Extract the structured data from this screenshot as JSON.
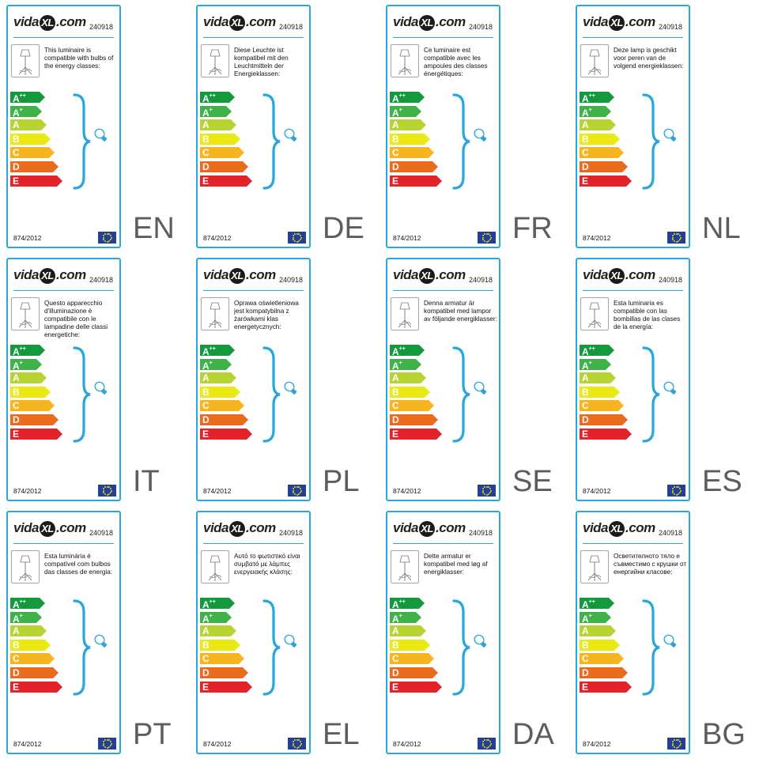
{
  "brand": {
    "prefix": "vida",
    "mark": "XL",
    "suffix": ".com"
  },
  "product_code": "240918",
  "regulation": "874/2012",
  "energy_classes": [
    {
      "label": "A",
      "sup": "++",
      "color": "#139a3f"
    },
    {
      "label": "A",
      "sup": "+",
      "color": "#3fb24a"
    },
    {
      "label": "A",
      "sup": "",
      "color": "#b8d433"
    },
    {
      "label": "B",
      "sup": "",
      "color": "#eaea10"
    },
    {
      "label": "C",
      "sup": "",
      "color": "#f6b51e"
    },
    {
      "label": "D",
      "sup": "",
      "color": "#eb6b1d"
    },
    {
      "label": "E",
      "sup": "",
      "color": "#e3232a"
    }
  ],
  "colors": {
    "accent": "#2aa6d8",
    "eu_flag": "#1f3f9a",
    "eu_star": "#ffd200"
  },
  "icons": {
    "lamp": "floor-lamp-icon",
    "bulb": "light-bulb-icon",
    "flag": "eu-flag-icon"
  },
  "labels": [
    {
      "lang": "EN",
      "text": "This luminaire is compatible with bulbs of the energy classes:"
    },
    {
      "lang": "DE",
      "text": "Diese Leuchte ist kompatibel mit den Leuchtmitteln der Energieklassen:"
    },
    {
      "lang": "FR",
      "text": "Ce luminaire est compatible avec les ampoules des classes énergétiques:"
    },
    {
      "lang": "NL",
      "text": "Deze lamp is geschikt voor peren van de volgend energieklassen:"
    },
    {
      "lang": "IT",
      "text": "Questo apparecchio d'illuminazione è compatibile con le lampadine delle classi energetiche:"
    },
    {
      "lang": "PL",
      "text": "Oprawa oświetleniowa jest kompatybilna z żarówkami klas energetycznych:"
    },
    {
      "lang": "SE",
      "text": "Denna armatur är kompatibel med lampor av följande energiklasser:"
    },
    {
      "lang": "ES",
      "text": "Esta luminaria es compatible con las bombillas de las clases de la energía:"
    },
    {
      "lang": "PT",
      "text": "Esta luminária é compatível com bulbos das classes de energia:"
    },
    {
      "lang": "EL",
      "text": "Αυτό το φωτιστικό είναι συμβατό με λάμπες ενεργειακής κλάσης:"
    },
    {
      "lang": "DA",
      "text": "Dette armatur er kompatibel med løg af energiklasser:"
    },
    {
      "lang": "BG",
      "text": "Осветителното тяло е съвместимо с крушки от енергийни класове:"
    }
  ]
}
